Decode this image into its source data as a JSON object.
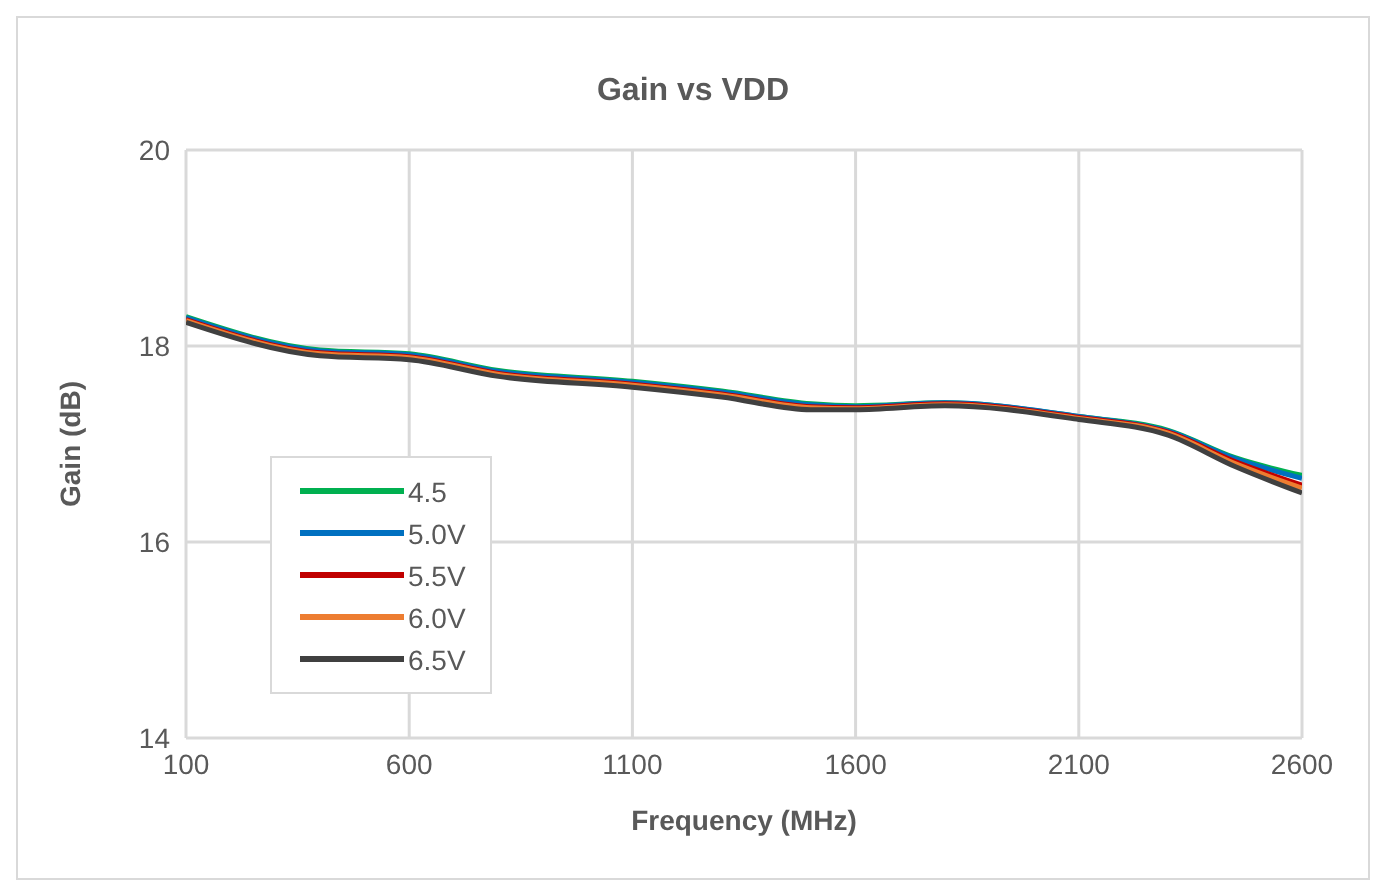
{
  "chart_data": {
    "type": "line",
    "title": "Gain vs VDD",
    "xlabel": "Frequency (MHz)",
    "ylabel": "Gain (dB)",
    "x": [
      100,
      400,
      600,
      800,
      1100,
      1300,
      1500,
      1600,
      1800,
      2100,
      2300,
      2450,
      2600
    ],
    "series": [
      {
        "name": "4.5",
        "color": "#00b050",
        "values": [
          18.3,
          17.96,
          17.92,
          17.75,
          17.64,
          17.54,
          17.41,
          17.39,
          17.42,
          17.28,
          17.14,
          16.86,
          16.68
        ]
      },
      {
        "name": "5.0V",
        "color": "#0070c0",
        "values": [
          18.29,
          17.95,
          17.91,
          17.74,
          17.63,
          17.53,
          17.4,
          17.38,
          17.42,
          17.28,
          17.13,
          16.85,
          16.65
        ]
      },
      {
        "name": "5.5V",
        "color": "#c00000",
        "values": [
          18.27,
          17.93,
          17.89,
          17.72,
          17.61,
          17.51,
          17.38,
          17.37,
          17.41,
          17.27,
          17.12,
          16.82,
          16.58
        ]
      },
      {
        "name": "6.0V",
        "color": "#ed7d31",
        "values": [
          18.26,
          17.92,
          17.88,
          17.71,
          17.6,
          17.5,
          17.37,
          17.36,
          17.4,
          17.26,
          17.11,
          16.8,
          16.55
        ]
      },
      {
        "name": "6.5V",
        "color": "#404040",
        "values": [
          18.24,
          17.9,
          17.86,
          17.69,
          17.58,
          17.48,
          17.35,
          17.35,
          17.39,
          17.25,
          17.09,
          16.77,
          16.5
        ]
      }
    ],
    "xlim": [
      100,
      2600
    ],
    "xticks": [
      100,
      600,
      1100,
      1600,
      2100,
      2600
    ],
    "ylim": [
      14,
      20
    ],
    "yticks": [
      14,
      16,
      18,
      20
    ],
    "grid": true,
    "legend": "bottom left",
    "marker": "none",
    "line_style": "solid"
  }
}
